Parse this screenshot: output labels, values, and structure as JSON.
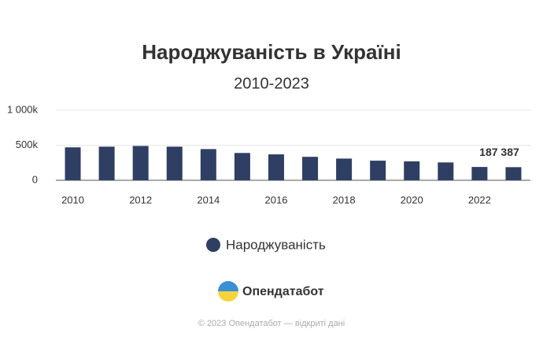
{
  "chart_data": {
    "type": "bar",
    "title": "Народжуваність в Україні",
    "subtitle": "2010-2023",
    "x": [
      2010,
      2011,
      2012,
      2013,
      2014,
      2015,
      2016,
      2017,
      2018,
      2019,
      2020,
      2021,
      2022,
      2023
    ],
    "xlim": [
      2009.5,
      2023.5
    ],
    "xticks": [
      2010,
      2012,
      2014,
      2016,
      2018,
      2020,
      2022
    ],
    "ylim": [
      0,
      1000000
    ],
    "yticks": [
      0,
      {
        "value": 500000,
        "label": "500k"
      },
      {
        "value": 1000000,
        "label": "1 000k"
      }
    ],
    "grid": true,
    "series": [
      {
        "name": "Народжуваність",
        "color": "#2e3f63",
        "values": [
          470000,
          480000,
          490000,
          480000,
          445000,
          390000,
          370000,
          335000,
          310000,
          280000,
          270000,
          255000,
          190000,
          187387
        ],
        "value_labels": [
          null,
          null,
          null,
          null,
          null,
          null,
          null,
          null,
          null,
          null,
          null,
          null,
          null,
          "187 387"
        ]
      }
    ]
  },
  "footer": {
    "brand": "Опендатабот",
    "copyright": "© 2023 Опендатабот — відкриті дані"
  }
}
